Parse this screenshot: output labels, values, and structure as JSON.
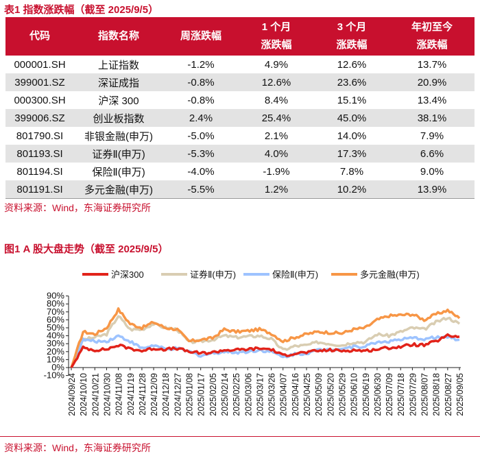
{
  "table_title": "表1  指数涨跌幅（截至 2025/9/5）",
  "table": {
    "headers": [
      [
        "代码"
      ],
      [
        "指数名称"
      ],
      [
        "周涨跌幅"
      ],
      [
        "1 个月",
        "涨跌幅"
      ],
      [
        "3 个月",
        "涨跌幅"
      ],
      [
        "年初至今",
        "涨跌幅"
      ]
    ],
    "rows": [
      [
        "000001.SH",
        "上证指数",
        "-1.2%",
        "4.9%",
        "12.6%",
        "13.7%"
      ],
      [
        "399001.SZ",
        "深证成指",
        "-0.8%",
        "12.6%",
        "23.6%",
        "20.9%"
      ],
      [
        "000300.SH",
        "沪深 300",
        "-0.8%",
        "8.4%",
        "15.1%",
        "13.4%"
      ],
      [
        "399006.SZ",
        "创业板指数",
        "2.4%",
        "25.4%",
        "45.0%",
        "38.1%"
      ],
      [
        "801790.SI",
        "非银金融(申万)",
        "-5.0%",
        "2.1%",
        "14.0%",
        "7.9%"
      ],
      [
        "801193.SI",
        "证券Ⅱ(申万)",
        "-5.3%",
        "4.0%",
        "17.3%",
        "6.6%"
      ],
      [
        "801194.SI",
        "保险Ⅱ(申万)",
        "-4.0%",
        "-1.9%",
        "7.8%",
        "9.0%"
      ],
      [
        "801191.SI",
        "多元金融(申万)",
        "-5.5%",
        "1.2%",
        "10.2%",
        "13.9%"
      ]
    ]
  },
  "source1": "资料来源：Wind，东海证券研究所",
  "chart_title": "图1  A 股大盘走势（截至 2025/9/5）",
  "source2": "资料来源：Wind，东海证券研究所",
  "colors": {
    "accent": "#c8102e"
  },
  "chart_data": {
    "type": "line",
    "ylim": [
      -10,
      90
    ],
    "yticks": [
      "-10%",
      "0%",
      "10%",
      "20%",
      "30%",
      "40%",
      "50%",
      "60%",
      "70%",
      "80%",
      "90%"
    ],
    "categories": [
      "2024/09/24",
      "2024/10/10",
      "2024/10/21",
      "2024/10/30",
      "2024/11/08",
      "2024/11/19",
      "2024/11/28",
      "2024/12/09",
      "2024/12/18",
      "2024/12/27",
      "2025/01/08",
      "2025/01/17",
      "2025/02/05",
      "2025/02/14",
      "2025/02/25",
      "2025/03/06",
      "2025/03/17",
      "2025/03/26",
      "2025/04/07",
      "2025/04/16",
      "2025/04/25",
      "2025/05/09",
      "2025/05/20",
      "2025/05/29",
      "2025/06/10",
      "2025/06/19",
      "2025/06/30",
      "2025/07/09",
      "2025/07/18",
      "2025/07/29",
      "2025/08/07",
      "2025/08/18",
      "2025/08/27",
      "2025/09/05"
    ],
    "series": [
      {
        "name": "证券Ⅱ(申万)",
        "color": "#d9cdb2",
        "values": [
          0,
          35,
          38,
          42,
          65,
          48,
          48,
          55,
          50,
          48,
          32,
          33,
          35,
          40,
          38,
          39,
          40,
          36,
          22,
          27,
          28,
          32,
          30,
          28,
          32,
          32,
          42,
          40,
          45,
          50,
          48,
          57,
          63,
          55
        ]
      },
      {
        "name": "保险Ⅱ(申万)",
        "color": "#9dc3ff",
        "values": [
          0,
          35,
          33,
          33,
          40,
          33,
          24,
          28,
          23,
          24,
          20,
          15,
          18,
          20,
          19,
          20,
          22,
          20,
          13,
          17,
          18,
          22,
          23,
          24,
          26,
          27,
          32,
          33,
          35,
          37,
          36,
          38,
          38,
          35
        ]
      },
      {
        "name": "多元金融(申万)",
        "color": "#f79646",
        "values": [
          0,
          45,
          42,
          50,
          73,
          55,
          50,
          57,
          50,
          48,
          33,
          35,
          37,
          48,
          45,
          46,
          48,
          43,
          33,
          38,
          42,
          45,
          44,
          43,
          48,
          50,
          60,
          65,
          66,
          67,
          60,
          67,
          72,
          62
        ]
      },
      {
        "name": "沪深300",
        "color": "#e2231a",
        "values": [
          0,
          25,
          22,
          23,
          28,
          24,
          21,
          24,
          23,
          24,
          20,
          18,
          19,
          22,
          22,
          23,
          24,
          23,
          15,
          18,
          19,
          21,
          22,
          21,
          22,
          21,
          23,
          25,
          26,
          29,
          28,
          33,
          40,
          39
        ]
      }
    ],
    "legend_order": [
      "沪深300",
      "证券Ⅱ(申万)",
      "保险Ⅱ(申万)",
      "多元金融(申万)"
    ],
    "legend": "top"
  }
}
